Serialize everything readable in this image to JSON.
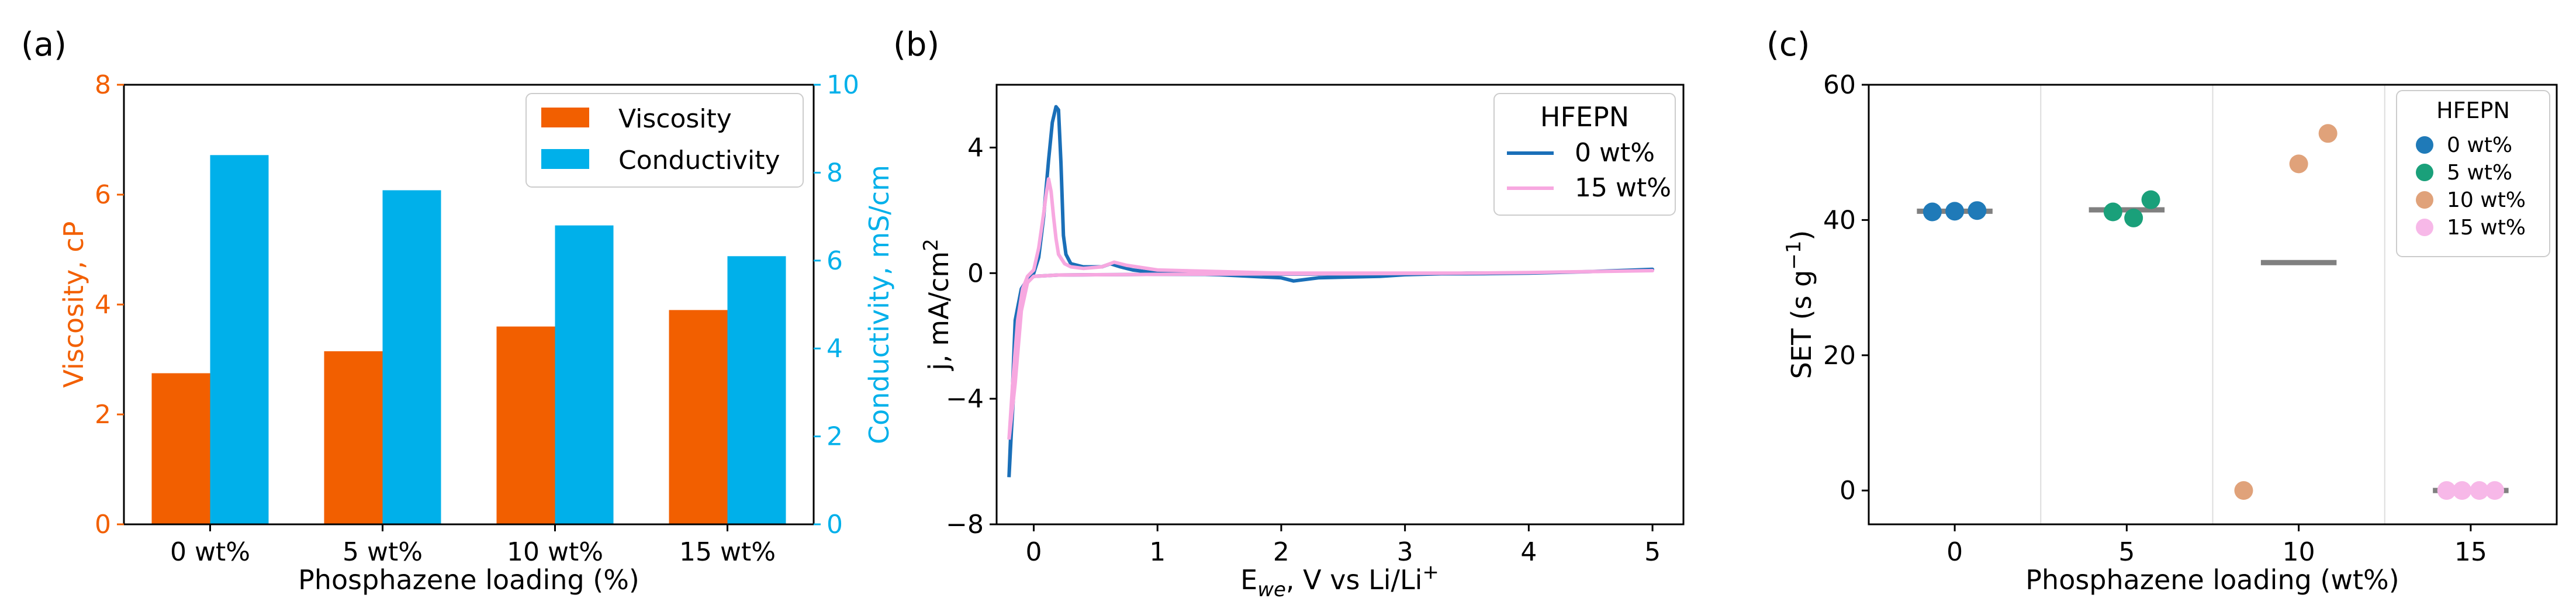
{
  "colors": {
    "viscosity": "#f25f00",
    "conductivity": "#00b0ea",
    "cv_0": "#1a6fb8",
    "cv_15": "#f7a8e0",
    "set_0": "#1f7ab8",
    "set_5": "#1aa07a",
    "set_10": "#e0a27a",
    "set_15": "#f7b8e8",
    "mean_line": "#808080"
  },
  "chart_data": [
    {
      "panel": "(a)",
      "type": "bar",
      "categories": [
        "0 wt%",
        "5 wt%",
        "10 wt%",
        "15 wt%"
      ],
      "series": [
        {
          "name": "Viscosity",
          "axis": "left",
          "values": [
            2.75,
            3.15,
            3.6,
            3.9
          ]
        },
        {
          "name": "Conductivity",
          "axis": "right",
          "values": [
            8.4,
            7.6,
            6.8,
            6.1
          ]
        }
      ],
      "xlabel": "Phosphazene loading (%)",
      "ylabel": "Viscosity, cP",
      "ylim": [
        0,
        8
      ],
      "yticks": [
        "0",
        "2",
        "4",
        "6",
        "8"
      ],
      "y2label": "Conductivity, mS/cm",
      "y2lim": [
        0,
        10
      ],
      "y2ticks": [
        "0",
        "2",
        "4",
        "6",
        "8",
        "10"
      ],
      "legend_loc": "top-right"
    },
    {
      "panel": "(b)",
      "type": "line",
      "xlabel_main": "E",
      "xlabel_sub": "we",
      "xlabel_rest": ", V vs Li/Li",
      "xlabel_sup": "+",
      "ylabel_main": "j, mA/cm",
      "ylabel_sup": "2",
      "xlim": [
        -0.3,
        5.25
      ],
      "ylim": [
        -8,
        6.0
      ],
      "xticks": [
        0,
        1,
        2,
        3,
        4,
        5
      ],
      "yticks": [
        -8,
        -4,
        0,
        4
      ],
      "legend_title": "HFEPN",
      "legend_loc": "top-right",
      "series": [
        {
          "name": "0 wt%",
          "x": [
            -0.2,
            -0.18,
            -0.15,
            -0.12,
            -0.08,
            -0.04,
            0.0,
            0.04,
            0.08,
            0.12,
            0.15,
            0.18,
            0.2,
            0.22,
            0.24,
            0.26,
            0.3,
            0.4,
            0.55,
            0.62,
            0.7,
            0.8,
            1.0,
            1.5,
            2.0,
            2.1,
            2.3,
            2.8,
            3.0,
            3.5,
            4.0,
            4.5,
            5.0,
            4.5,
            4.0,
            3.5,
            3.0,
            2.5,
            2.0,
            1.5,
            1.0,
            0.5,
            0.2,
            0.0,
            -0.05,
            -0.1,
            -0.15,
            -0.2
          ],
          "y": [
            -6.5,
            -5.0,
            -3.0,
            -1.5,
            -0.6,
            -0.2,
            0.0,
            0.5,
            1.8,
            3.6,
            4.8,
            5.3,
            5.2,
            3.5,
            1.2,
            0.6,
            0.3,
            0.2,
            0.2,
            0.3,
            0.2,
            0.1,
            0.0,
            -0.05,
            -0.15,
            -0.25,
            -0.15,
            -0.1,
            -0.05,
            0.0,
            0.0,
            0.05,
            0.12,
            0.05,
            0.0,
            -0.02,
            -0.02,
            -0.03,
            -0.03,
            -0.04,
            -0.04,
            -0.05,
            -0.06,
            -0.1,
            -0.2,
            -0.5,
            -1.5,
            -6.5
          ]
        },
        {
          "name": "15 wt%",
          "x": [
            -0.2,
            -0.17,
            -0.13,
            -0.09,
            -0.05,
            0.0,
            0.04,
            0.08,
            0.1,
            0.12,
            0.14,
            0.16,
            0.18,
            0.2,
            0.25,
            0.3,
            0.4,
            0.55,
            0.65,
            0.75,
            1.0,
            1.5,
            2.0,
            2.5,
            3.0,
            3.5,
            4.0,
            4.5,
            5.0,
            4.5,
            4.0,
            3.5,
            3.0,
            2.5,
            2.0,
            1.5,
            1.0,
            0.5,
            0.2,
            0.0,
            -0.05,
            -0.1,
            -0.15,
            -0.2
          ],
          "y": [
            -5.3,
            -3.5,
            -1.5,
            -0.5,
            -0.1,
            0.1,
            0.8,
            1.9,
            2.5,
            3.0,
            2.6,
            1.8,
            1.1,
            0.6,
            0.3,
            0.2,
            0.15,
            0.2,
            0.35,
            0.25,
            0.1,
            0.05,
            0.0,
            0.0,
            0.0,
            0.0,
            0.02,
            0.05,
            0.08,
            0.05,
            0.02,
            0.0,
            -0.01,
            -0.02,
            -0.02,
            -0.03,
            -0.04,
            -0.05,
            -0.06,
            -0.1,
            -0.3,
            -1.2,
            -3.5,
            -5.3
          ]
        }
      ]
    },
    {
      "panel": "(c)",
      "type": "scatter",
      "categories": [
        "0",
        "5",
        "10",
        "15"
      ],
      "xlabel": "Phosphazene loading (wt%)",
      "ylabel_main": "SET (s g",
      "ylabel_sup": "−1",
      "ylabel_end": ")",
      "ylim": [
        -5,
        60
      ],
      "yticks": [
        0,
        20,
        40,
        60
      ],
      "legend_title": "HFEPN",
      "legend_loc": "top-right",
      "series": [
        {
          "name": "0 wt%",
          "points": [
            {
              "dx": -0.13,
              "y": 41.2
            },
            {
              "dx": 0.0,
              "y": 41.3
            },
            {
              "dx": 0.13,
              "y": 41.4
            }
          ],
          "mean": 41.3
        },
        {
          "name": "5 wt%",
          "points": [
            {
              "dx": -0.08,
              "y": 41.2
            },
            {
              "dx": 0.04,
              "y": 40.3
            },
            {
              "dx": 0.14,
              "y": 43.0
            }
          ],
          "mean": 41.5
        },
        {
          "name": "10 wt%",
          "points": [
            {
              "dx": -0.32,
              "y": 0.0
            },
            {
              "dx": 0.0,
              "y": 48.3
            },
            {
              "dx": 0.17,
              "y": 52.8
            }
          ],
          "mean": 33.7
        },
        {
          "name": "15 wt%",
          "points": [
            {
              "dx": -0.14,
              "y": 0.0
            },
            {
              "dx": -0.05,
              "y": 0.0
            },
            {
              "dx": 0.05,
              "y": 0.0
            },
            {
              "dx": 0.14,
              "y": 0.0
            }
          ],
          "mean": 0.0
        }
      ]
    }
  ]
}
